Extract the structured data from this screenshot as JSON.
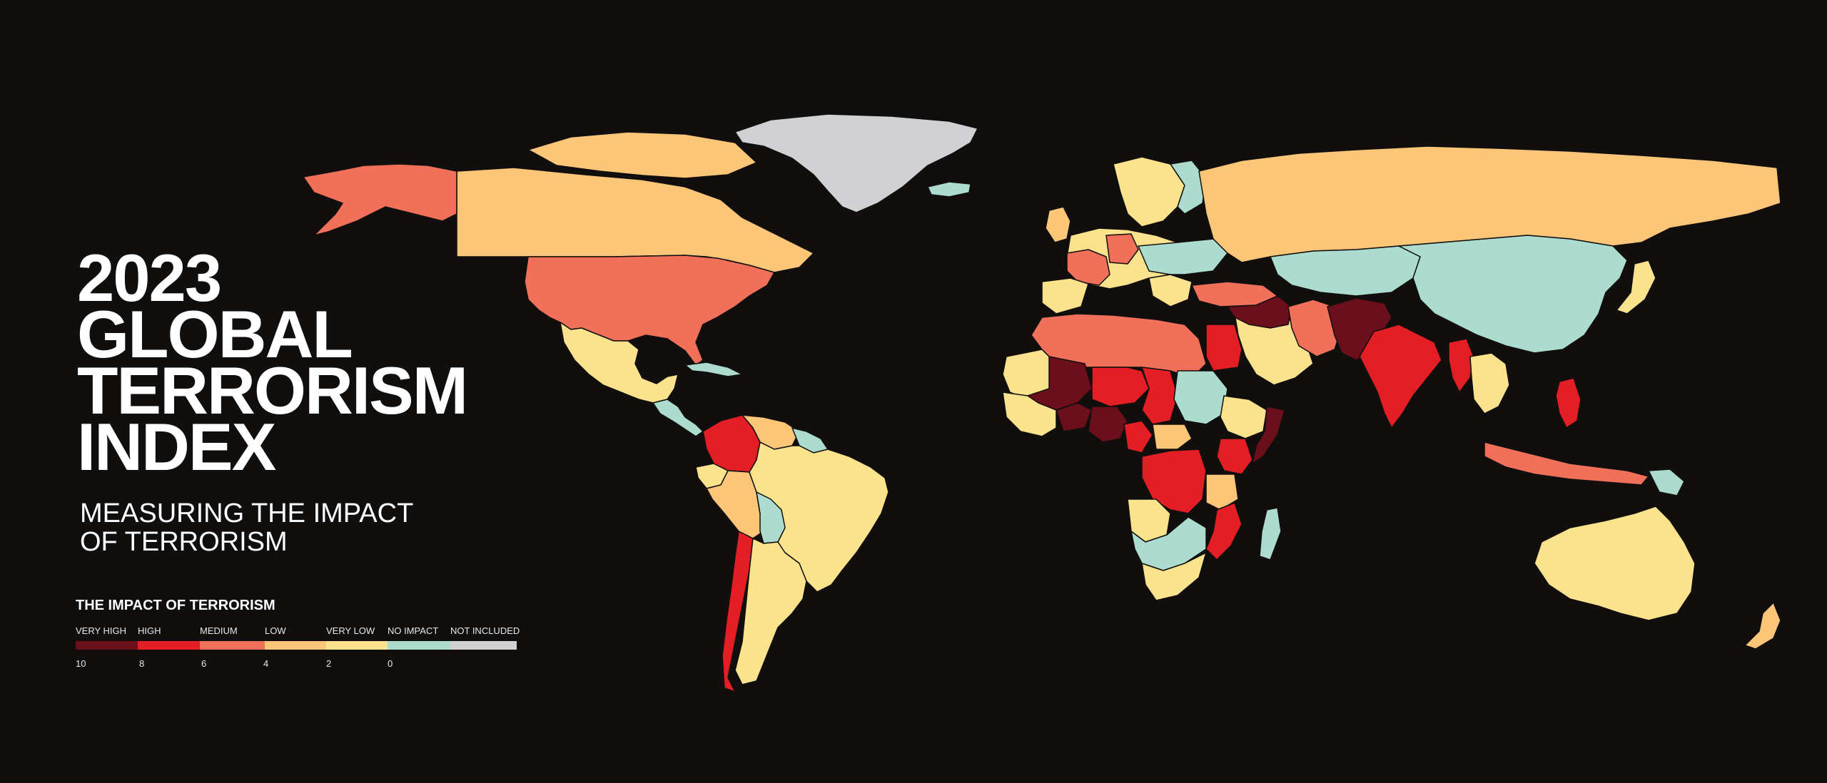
{
  "title": {
    "lines": [
      "2023",
      "GLOBAL",
      "TERRORISM",
      "INDEX"
    ]
  },
  "subtitle": {
    "lines": [
      "MEASURING THE IMPACT",
      "OF TERRORISM"
    ]
  },
  "legend": {
    "title": "THE IMPACT OF TERRORISM",
    "categories": [
      {
        "label": "VERY HIGH",
        "color": "#6b0f1a"
      },
      {
        "label": "HIGH",
        "color": "#e31e24"
      },
      {
        "label": "MEDIUM",
        "color": "#f07059"
      },
      {
        "label": "LOW",
        "color": "#fcc679"
      },
      {
        "label": "VERY LOW",
        "color": "#fbe28c"
      },
      {
        "label": "NO IMPACT",
        "color": "#acdcce"
      },
      {
        "label": "NOT INCLUDED",
        "color": "#d1d1d3"
      }
    ],
    "ticks": [
      "10",
      "8",
      "6",
      "4",
      "2",
      "0"
    ]
  },
  "colors": {
    "background": "#110e0e",
    "text": "#ffffff",
    "country_border": "#110e0e"
  }
}
